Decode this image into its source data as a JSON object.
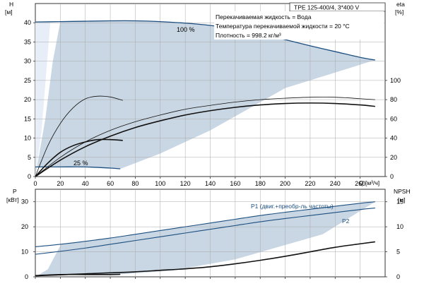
{
  "colors": {
    "area_fill": "#c9d6e3",
    "area_light": "#e7eef7",
    "blue_curve": "#1c4f80",
    "black_curve": "#111111",
    "grid": "#a9a9a9",
    "axis": "#333333"
  },
  "chart_data": [
    {
      "type": "line",
      "title": "TPE 125-400/4, 3*400 V",
      "annotations": [
        "Перекачиваемая жидкость = Вода",
        "Температура перекачиваемой жидкости = 20 °C",
        "Плотность = 998.2 кг/м³"
      ],
      "xlabel": "Q [м³/ч]",
      "ylabel_left_name": "H",
      "ylabel_left_unit": "[м]",
      "ylabel_right_name": "eta",
      "ylabel_right_unit": "[%]",
      "xlim": [
        0,
        280
      ],
      "ylim_left": [
        0,
        45
      ],
      "ylim_right": [
        0,
        180
      ],
      "grid": true,
      "x_ticks": [
        0,
        20,
        40,
        60,
        80,
        100,
        120,
        140,
        160,
        180,
        200,
        220,
        240,
        260
      ],
      "y_ticks_left": [
        0,
        5,
        10,
        15,
        20,
        25,
        30,
        35,
        40
      ],
      "y_ticks_right": [
        0,
        20,
        40,
        60,
        80,
        100
      ],
      "series": [
        {
          "name": "100 %",
          "axis": "left",
          "color": "blue",
          "x": [
            0,
            20,
            40,
            60,
            80,
            100,
            120,
            140,
            160,
            180,
            200,
            220,
            240,
            260,
            272
          ],
          "y": [
            40.2,
            40.3,
            40.4,
            40.5,
            40.5,
            40.3,
            39.9,
            39.3,
            38.4,
            37.1,
            35.6,
            34.0,
            32.5,
            31.0,
            30.3
          ]
        },
        {
          "name": "25 %",
          "axis": "left",
          "color": "blue",
          "x": [
            0,
            20,
            40,
            60,
            68
          ],
          "y": [
            2.5,
            2.5,
            2.5,
            2.2,
            2.0
          ]
        },
        {
          "axis": "left",
          "color": "black",
          "width": 0.8,
          "x": [
            0,
            10,
            20,
            30,
            40,
            50,
            60,
            70
          ],
          "y": [
            0,
            8.0,
            13.8,
            17.8,
            20.2,
            20.9,
            20.7,
            19.8
          ]
        },
        {
          "axis": "left",
          "color": "black",
          "width": 1.6,
          "x": [
            0,
            10,
            20,
            30,
            40,
            50,
            60,
            70
          ],
          "y": [
            0,
            3.5,
            6.3,
            8.0,
            9.0,
            9.6,
            9.6,
            9.4
          ]
        },
        {
          "axis": "right",
          "color": "black",
          "width": 0.8,
          "x": [
            0,
            20,
            40,
            60,
            80,
            100,
            120,
            140,
            160,
            180,
            200,
            220,
            240,
            260,
            272
          ],
          "y": [
            0,
            20,
            36,
            48,
            57,
            64,
            70,
            74,
            77.5,
            80,
            81.5,
            82.5,
            82.5,
            81,
            80
          ]
        },
        {
          "axis": "right",
          "color": "black",
          "width": 1.6,
          "x": [
            0,
            20,
            40,
            60,
            80,
            100,
            120,
            140,
            160,
            180,
            200,
            220,
            240,
            260,
            272
          ],
          "y": [
            0,
            17,
            31,
            42,
            51,
            58,
            64,
            68.5,
            72,
            74.5,
            76,
            76.5,
            76,
            74.5,
            73
          ]
        }
      ],
      "labels": [
        "100 %",
        "25 %"
      ]
    },
    {
      "type": "line",
      "xlim": [
        0,
        280
      ],
      "ylabel_left_name": "P",
      "ylabel_left_unit": "[кВт]",
      "ylabel_right_name": "NPSH",
      "ylabel_right_unit": "[м]",
      "ylim_left": [
        0,
        35
      ],
      "ylim_right": [
        0,
        17.5
      ],
      "grid": true,
      "y_ticks_left": [
        0,
        10,
        20,
        30
      ],
      "y_ticks_right": [
        0,
        5,
        10,
        15
      ],
      "series": [
        {
          "name": "P1 (двиг.+преобр-ль частоты)",
          "axis": "left",
          "color": "blue",
          "x": [
            0,
            20,
            40,
            60,
            80,
            100,
            120,
            140,
            160,
            180,
            200,
            220,
            240,
            260,
            272
          ],
          "y": [
            12,
            13,
            14.2,
            15.5,
            17,
            18.5,
            20,
            21.5,
            23,
            24.5,
            25.8,
            27,
            28.2,
            29.4,
            30
          ]
        },
        {
          "name": "P2",
          "axis": "left",
          "color": "blue",
          "x": [
            0,
            20,
            40,
            60,
            80,
            100,
            120,
            140,
            160,
            180,
            200,
            220,
            240,
            260,
            272
          ],
          "y": [
            9,
            10.2,
            11.5,
            13,
            14.5,
            16,
            17.5,
            19,
            20.5,
            22,
            23.3,
            24.5,
            25.7,
            26.9,
            27.5
          ]
        },
        {
          "axis": "right",
          "color": "black",
          "width": 1.6,
          "x": [
            0,
            20,
            40,
            60,
            80,
            100,
            120,
            140,
            160,
            180,
            200,
            220,
            240,
            260,
            272
          ],
          "y": [
            0.2,
            0.4,
            0.6,
            0.8,
            1.0,
            1.3,
            1.6,
            2.0,
            2.6,
            3.3,
            4.1,
            5.0,
            5.9,
            6.6,
            7.0
          ]
        },
        {
          "axis": "left",
          "color": "black",
          "width": 1.6,
          "x": [
            0,
            20,
            40,
            60,
            68
          ],
          "y": [
            0.5,
            0.9,
            0.9,
            0.9,
            1.0
          ]
        }
      ],
      "labels": [
        "P1 (двиг.+преобр-ль частоты)",
        "P2"
      ]
    }
  ]
}
